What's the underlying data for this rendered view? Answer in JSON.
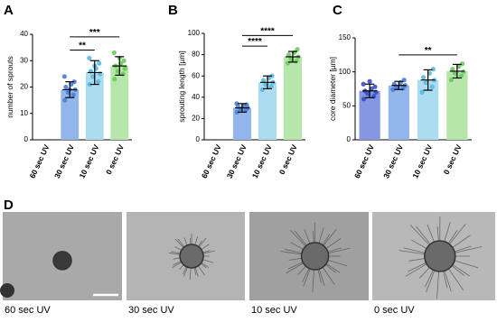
{
  "chart_data": [
    {
      "type": "bar",
      "panel": "A",
      "ylabel": "number of sprouts",
      "categories": [
        "60 sec UV",
        "30 sec UV",
        "10 sec UV",
        "0 sec UV"
      ],
      "values": [
        0,
        19,
        25.5,
        28
      ],
      "errors": [
        0,
        3,
        4.5,
        3.5
      ],
      "colors": [
        "#8796e2",
        "#93b6ea",
        "#abdcf0",
        "#b7e6ab"
      ],
      "point_colors": [
        "#3650c8",
        "#4a80d4",
        "#5bb8e2",
        "#6cca5e"
      ],
      "points": [
        [],
        [
          15,
          17,
          18,
          19,
          20,
          21,
          22,
          24,
          19
        ],
        [
          21,
          22,
          24,
          25,
          26,
          27,
          29,
          31,
          28
        ],
        [
          23,
          25,
          26,
          27,
          28,
          29,
          30,
          33,
          31
        ]
      ],
      "ylim": [
        0,
        40
      ],
      "yticks": [
        0,
        10,
        20,
        30,
        40
      ],
      "significance": [
        {
          "between": [
            "30 sec UV",
            "10 sec UV"
          ],
          "y": 34,
          "label": "**"
        },
        {
          "between": [
            "30 sec UV",
            "0 sec UV"
          ],
          "y": 39,
          "label": "***"
        }
      ]
    },
    {
      "type": "bar",
      "panel": "B",
      "ylabel": "sprouting length [µm]",
      "categories": [
        "60 sec UV",
        "30 sec UV",
        "10 sec UV",
        "0 sec UV"
      ],
      "values": [
        0,
        30,
        54,
        78
      ],
      "errors": [
        0,
        4,
        6,
        5
      ],
      "colors": [
        "#8796e2",
        "#93b6ea",
        "#abdcf0",
        "#b7e6ab"
      ],
      "point_colors": [
        "#3650c8",
        "#4a80d4",
        "#5bb8e2",
        "#6cca5e"
      ],
      "points": [
        [],
        [
          26,
          28,
          29,
          30,
          31,
          32,
          33,
          34
        ],
        [
          47,
          50,
          52,
          54,
          56,
          58,
          60
        ],
        [
          72,
          74,
          76,
          78,
          80,
          82,
          85
        ]
      ],
      "ylim": [
        0,
        100
      ],
      "yticks": [
        0,
        20,
        40,
        60,
        80,
        100
      ],
      "significance": [
        {
          "between": [
            "30 sec UV",
            "10 sec UV"
          ],
          "y": 88,
          "label": "****"
        },
        {
          "between": [
            "30 sec UV",
            "0 sec UV"
          ],
          "y": 98,
          "label": "****"
        }
      ]
    },
    {
      "type": "bar",
      "panel": "C",
      "ylabel": "core diameter [µm]",
      "categories": [
        "60 sec UV",
        "30 sec UV",
        "10 sec UV",
        "0 sec UV"
      ],
      "values": [
        72,
        80,
        88,
        101
      ],
      "errors": [
        10,
        6,
        15,
        10
      ],
      "colors": [
        "#8796e2",
        "#93b6ea",
        "#abdcf0",
        "#b7e6ab"
      ],
      "point_colors": [
        "#3650c8",
        "#4a80d4",
        "#5bb8e2",
        "#6cca5e"
      ],
      "points": [
        [
          60,
          64,
          68,
          70,
          72,
          75,
          78,
          82,
          86
        ],
        [
          74,
          76,
          78,
          80,
          82,
          84,
          88
        ],
        [
          70,
          78,
          84,
          88,
          92,
          98,
          104
        ],
        [
          88,
          94,
          98,
          100,
          104,
          108,
          112
        ]
      ],
      "ylim": [
        0,
        150
      ],
      "yticks": [
        0,
        50,
        100,
        150
      ],
      "significance": [
        {
          "between": [
            "30 sec UV",
            "0 sec UV"
          ],
          "y": 125,
          "label": "**"
        }
      ]
    }
  ],
  "micrographs": {
    "panel": "D",
    "captions": [
      "60 sec UV",
      "30 sec UV",
      "10 sec UV",
      "0 sec UV"
    ]
  }
}
